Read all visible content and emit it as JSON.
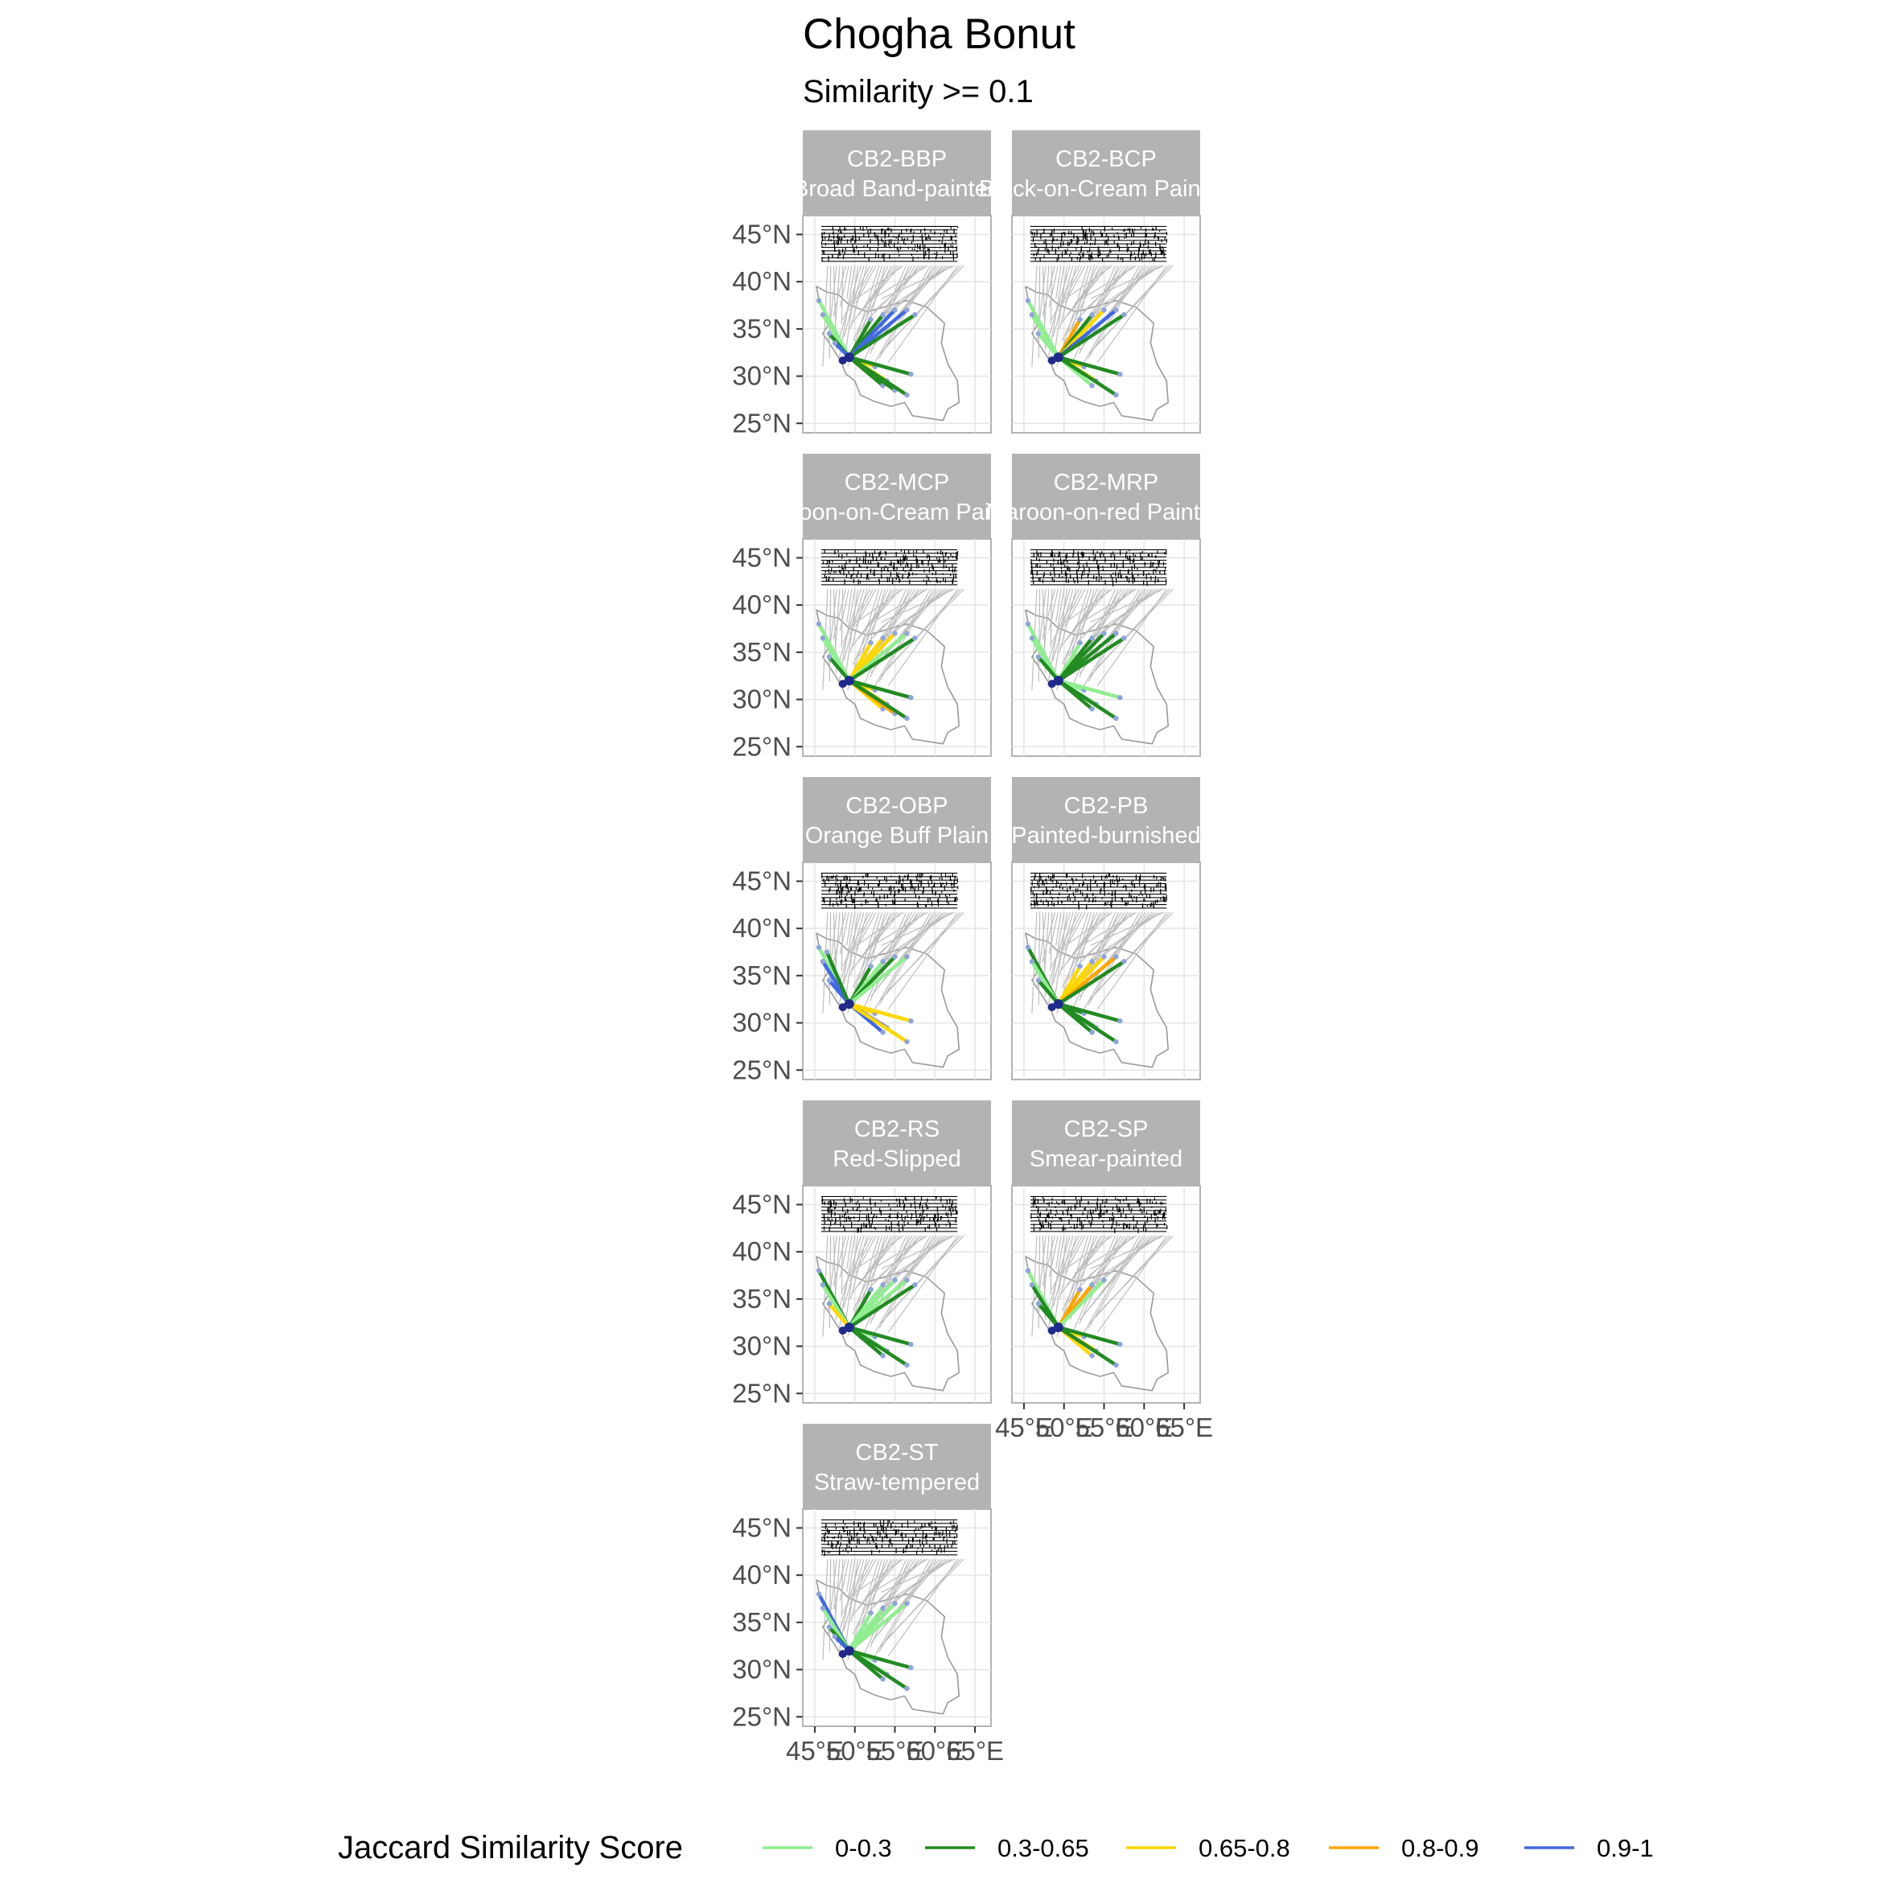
{
  "chart_data": {
    "type": "map",
    "title": "Chogha Bonut",
    "subtitle": "Similarity >= 0.1",
    "x_ticks": [
      "45°E",
      "50°E",
      "55°E",
      "60°E",
      "65°E"
    ],
    "x_tick_values": [
      45,
      50,
      55,
      60,
      65
    ],
    "y_ticks": [
      "25°N",
      "30°N",
      "35°N",
      "40°N",
      "45°N"
    ],
    "y_tick_values": [
      25,
      30,
      35,
      40,
      45
    ],
    "xlim": [
      43.5,
      67
    ],
    "ylim": [
      24,
      47
    ],
    "grid": true,
    "origin": {
      "lon": 49.3,
      "lat": 32.0
    },
    "legend": {
      "title": "Jaccard Similarity Score",
      "position": "bottom",
      "items": [
        {
          "label": "0-0.3",
          "color": "#90ee90"
        },
        {
          "label": "0.3-0.65",
          "color": "#228b22"
        },
        {
          "label": "0.65-0.8",
          "color": "#ffd700"
        },
        {
          "label": "0.8-0.9",
          "color": "#ffa500"
        },
        {
          "label": "0.9-1",
          "color": "#4169e1"
        }
      ]
    },
    "panels": [
      {
        "code": "CB2-BBP",
        "name": "Broad Band-painted",
        "links": [
          {
            "lon": 45.5,
            "lat": 38.0,
            "class": 0
          },
          {
            "lon": 46.0,
            "lat": 36.5,
            "class": 0
          },
          {
            "lon": 46.8,
            "lat": 34.5,
            "class": 1
          },
          {
            "lon": 47.5,
            "lat": 33.5,
            "class": 4
          },
          {
            "lon": 52.0,
            "lat": 36.0,
            "class": 1
          },
          {
            "lon": 53.5,
            "lat": 36.5,
            "class": 1
          },
          {
            "lon": 55.0,
            "lat": 37.0,
            "class": 4
          },
          {
            "lon": 56.5,
            "lat": 37.0,
            "class": 4
          },
          {
            "lon": 57.5,
            "lat": 36.5,
            "class": 1
          },
          {
            "lon": 52.5,
            "lat": 31.0,
            "class": 2
          },
          {
            "lon": 54.0,
            "lat": 29.5,
            "class": 2
          },
          {
            "lon": 53.5,
            "lat": 29.0,
            "class": 1
          },
          {
            "lon": 55.0,
            "lat": 28.5,
            "class": 1
          },
          {
            "lon": 57.0,
            "lat": 30.2,
            "class": 1
          },
          {
            "lon": 56.5,
            "lat": 28.0,
            "class": 1
          }
        ]
      },
      {
        "code": "CB2-BCP",
        "name": "Black-on-Cream Painted",
        "links": [
          {
            "lon": 45.5,
            "lat": 38.0,
            "class": 0
          },
          {
            "lon": 46.0,
            "lat": 36.5,
            "class": 0
          },
          {
            "lon": 46.8,
            "lat": 34.5,
            "class": 0
          },
          {
            "lon": 52.0,
            "lat": 36.0,
            "class": 3
          },
          {
            "lon": 53.5,
            "lat": 36.5,
            "class": 1
          },
          {
            "lon": 55.0,
            "lat": 37.0,
            "class": 2
          },
          {
            "lon": 56.5,
            "lat": 37.0,
            "class": 4
          },
          {
            "lon": 57.5,
            "lat": 36.5,
            "class": 1
          },
          {
            "lon": 52.5,
            "lat": 31.0,
            "class": 2
          },
          {
            "lon": 54.0,
            "lat": 29.5,
            "class": 2
          },
          {
            "lon": 53.5,
            "lat": 29.0,
            "class": 0
          },
          {
            "lon": 57.0,
            "lat": 30.2,
            "class": 1
          },
          {
            "lon": 56.5,
            "lat": 28.0,
            "class": 1
          }
        ]
      },
      {
        "code": "CB2-MCP",
        "name": "Maroon-on-Cream Painted",
        "links": [
          {
            "lon": 45.5,
            "lat": 38.0,
            "class": 0
          },
          {
            "lon": 46.0,
            "lat": 36.5,
            "class": 0
          },
          {
            "lon": 46.8,
            "lat": 34.5,
            "class": 1
          },
          {
            "lon": 52.0,
            "lat": 36.0,
            "class": 2
          },
          {
            "lon": 53.5,
            "lat": 36.5,
            "class": 2
          },
          {
            "lon": 55.0,
            "lat": 37.0,
            "class": 2
          },
          {
            "lon": 56.5,
            "lat": 37.0,
            "class": 0
          },
          {
            "lon": 57.5,
            "lat": 36.5,
            "class": 1
          },
          {
            "lon": 52.5,
            "lat": 31.0,
            "class": 2
          },
          {
            "lon": 54.0,
            "lat": 29.5,
            "class": 2
          },
          {
            "lon": 53.5,
            "lat": 29.0,
            "class": 2
          },
          {
            "lon": 55.0,
            "lat": 28.5,
            "class": 3
          },
          {
            "lon": 57.0,
            "lat": 30.2,
            "class": 1
          },
          {
            "lon": 56.5,
            "lat": 28.0,
            "class": 1
          }
        ]
      },
      {
        "code": "CB2-MRP",
        "name": "Maroon-on-red Painted",
        "links": [
          {
            "lon": 45.5,
            "lat": 38.0,
            "class": 0
          },
          {
            "lon": 46.0,
            "lat": 36.5,
            "class": 0
          },
          {
            "lon": 46.8,
            "lat": 34.5,
            "class": 1
          },
          {
            "lon": 52.0,
            "lat": 36.0,
            "class": 0
          },
          {
            "lon": 53.5,
            "lat": 36.5,
            "class": 1
          },
          {
            "lon": 55.0,
            "lat": 37.0,
            "class": 1
          },
          {
            "lon": 56.5,
            "lat": 37.0,
            "class": 1
          },
          {
            "lon": 57.5,
            "lat": 36.5,
            "class": 1
          },
          {
            "lon": 52.5,
            "lat": 31.0,
            "class": 0
          },
          {
            "lon": 54.0,
            "lat": 29.5,
            "class": 0
          },
          {
            "lon": 53.5,
            "lat": 29.0,
            "class": 1
          },
          {
            "lon": 57.0,
            "lat": 30.2,
            "class": 0
          },
          {
            "lon": 56.5,
            "lat": 28.0,
            "class": 1
          }
        ]
      },
      {
        "code": "CB2-OBP",
        "name": "Orange Buff Plain",
        "links": [
          {
            "lon": 45.5,
            "lat": 38.0,
            "class": 0
          },
          {
            "lon": 46.0,
            "lat": 36.5,
            "class": 4
          },
          {
            "lon": 46.8,
            "lat": 34.5,
            "class": 4
          },
          {
            "lon": 46.5,
            "lat": 37.5,
            "class": 1
          },
          {
            "lon": 52.0,
            "lat": 36.0,
            "class": 1
          },
          {
            "lon": 53.5,
            "lat": 36.5,
            "class": 0
          },
          {
            "lon": 55.0,
            "lat": 37.0,
            "class": 1
          },
          {
            "lon": 56.5,
            "lat": 37.0,
            "class": 0
          },
          {
            "lon": 52.5,
            "lat": 31.0,
            "class": 2
          },
          {
            "lon": 54.0,
            "lat": 29.5,
            "class": 4
          },
          {
            "lon": 53.5,
            "lat": 29.0,
            "class": 4
          },
          {
            "lon": 57.0,
            "lat": 30.2,
            "class": 2
          },
          {
            "lon": 56.5,
            "lat": 28.0,
            "class": 2
          }
        ]
      },
      {
        "code": "CB2-PB",
        "name": "Painted-burnished",
        "links": [
          {
            "lon": 45.5,
            "lat": 38.0,
            "class": 1
          },
          {
            "lon": 46.0,
            "lat": 36.5,
            "class": 0
          },
          {
            "lon": 46.8,
            "lat": 34.5,
            "class": 1
          },
          {
            "lon": 52.0,
            "lat": 36.0,
            "class": 2
          },
          {
            "lon": 53.5,
            "lat": 36.5,
            "class": 2
          },
          {
            "lon": 55.0,
            "lat": 37.0,
            "class": 2
          },
          {
            "lon": 56.5,
            "lat": 37.0,
            "class": 3
          },
          {
            "lon": 57.5,
            "lat": 36.5,
            "class": 1
          },
          {
            "lon": 52.5,
            "lat": 31.0,
            "class": 1
          },
          {
            "lon": 54.0,
            "lat": 29.5,
            "class": 1
          },
          {
            "lon": 53.5,
            "lat": 29.0,
            "class": 1
          },
          {
            "lon": 57.0,
            "lat": 30.2,
            "class": 1
          },
          {
            "lon": 56.5,
            "lat": 28.0,
            "class": 1
          }
        ]
      },
      {
        "code": "CB2-RS",
        "name": "Red-Slipped",
        "links": [
          {
            "lon": 45.5,
            "lat": 38.0,
            "class": 1
          },
          {
            "lon": 46.0,
            "lat": 36.5,
            "class": 0
          },
          {
            "lon": 46.8,
            "lat": 34.5,
            "class": 2
          },
          {
            "lon": 52.0,
            "lat": 36.0,
            "class": 1
          },
          {
            "lon": 53.5,
            "lat": 36.5,
            "class": 0
          },
          {
            "lon": 55.0,
            "lat": 37.0,
            "class": 0
          },
          {
            "lon": 56.5,
            "lat": 37.0,
            "class": 0
          },
          {
            "lon": 57.5,
            "lat": 36.5,
            "class": 1
          },
          {
            "lon": 52.5,
            "lat": 31.0,
            "class": 0
          },
          {
            "lon": 54.0,
            "lat": 29.5,
            "class": 0
          },
          {
            "lon": 53.5,
            "lat": 29.0,
            "class": 1
          },
          {
            "lon": 57.0,
            "lat": 30.2,
            "class": 1
          },
          {
            "lon": 56.5,
            "lat": 28.0,
            "class": 1
          }
        ]
      },
      {
        "code": "CB2-SP",
        "name": "Smear-painted",
        "links": [
          {
            "lon": 45.5,
            "lat": 38.0,
            "class": 0
          },
          {
            "lon": 46.0,
            "lat": 36.5,
            "class": 1
          },
          {
            "lon": 46.8,
            "lat": 34.5,
            "class": 1
          },
          {
            "lon": 52.0,
            "lat": 36.0,
            "class": 3
          },
          {
            "lon": 53.5,
            "lat": 36.5,
            "class": 3
          },
          {
            "lon": 55.0,
            "lat": 37.0,
            "class": 0
          },
          {
            "lon": 52.5,
            "lat": 31.0,
            "class": 2
          },
          {
            "lon": 54.0,
            "lat": 29.5,
            "class": 2
          },
          {
            "lon": 53.5,
            "lat": 29.0,
            "class": 2
          },
          {
            "lon": 57.0,
            "lat": 30.2,
            "class": 1
          },
          {
            "lon": 56.5,
            "lat": 28.0,
            "class": 1
          }
        ]
      },
      {
        "code": "CB2-ST",
        "name": "Straw-tempered",
        "links": [
          {
            "lon": 45.5,
            "lat": 38.0,
            "class": 4
          },
          {
            "lon": 46.0,
            "lat": 36.5,
            "class": 0
          },
          {
            "lon": 46.8,
            "lat": 34.5,
            "class": 1
          },
          {
            "lon": 47.5,
            "lat": 33.5,
            "class": 4
          },
          {
            "lon": 52.0,
            "lat": 36.0,
            "class": 0
          },
          {
            "lon": 53.5,
            "lat": 36.5,
            "class": 0
          },
          {
            "lon": 55.0,
            "lat": 37.0,
            "class": 0
          },
          {
            "lon": 56.5,
            "lat": 37.0,
            "class": 0
          },
          {
            "lon": 52.5,
            "lat": 31.0,
            "class": 0
          },
          {
            "lon": 54.0,
            "lat": 29.5,
            "class": 0
          },
          {
            "lon": 53.5,
            "lat": 29.0,
            "class": 1
          },
          {
            "lon": 57.0,
            "lat": 30.2,
            "class": 1
          },
          {
            "lon": 56.5,
            "lat": 28.0,
            "class": 1
          }
        ]
      }
    ]
  }
}
